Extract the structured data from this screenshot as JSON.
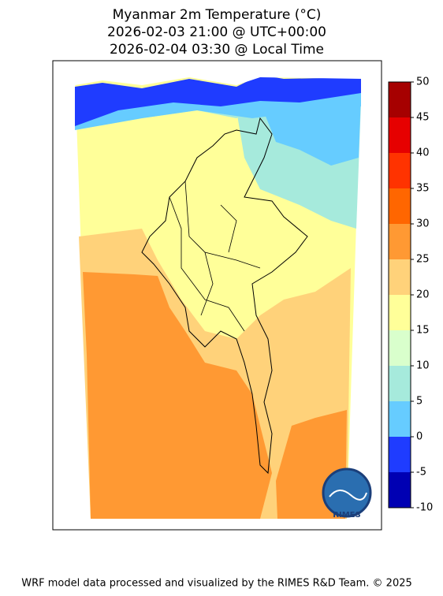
{
  "title": [
    "Myanmar 2m Temperature (°C)",
    "2026-02-03 21:00 @ UTC+00:00",
    "2026-02-04 03:30 @ Local Time"
  ],
  "colorbar": {
    "ticks": [
      -10,
      -5,
      0,
      5,
      10,
      15,
      20,
      25,
      30,
      35,
      40,
      45,
      50
    ],
    "colors": [
      "#0000b3",
      "#1f3cff",
      "#66ccff",
      "#a6eadc",
      "#d9ffcc",
      "#ffff99",
      "#ffd27a",
      "#ff9933",
      "#ff6600",
      "#ff3300",
      "#e60000",
      "#a60000"
    ]
  },
  "logo": "RIMES",
  "footer": "WRF model data processed and visualized by the RIMES R&D Team. © 2025"
}
